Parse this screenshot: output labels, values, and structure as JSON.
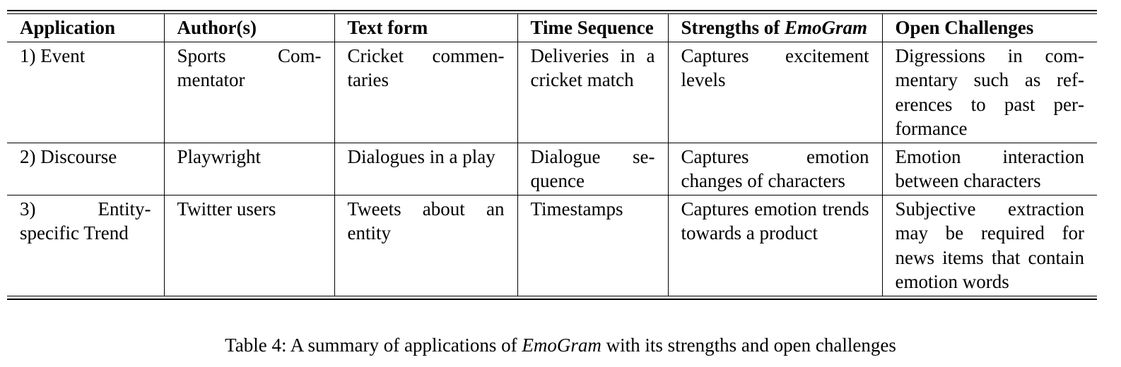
{
  "table": {
    "headers": [
      {
        "html": "Application"
      },
      {
        "html": "Author(s)"
      },
      {
        "html": "Text form"
      },
      {
        "html": "Time Se&shy;quence"
      },
      {
        "html": "Strengths of <em>EmoGram</em>"
      },
      {
        "html": "Open Challenges"
      }
    ],
    "rows": [
      [
        "1) Event",
        "Sports Com&shy;mentator",
        "Cricket commen&shy;taries",
        "Deliveries in a cricket match",
        "Captures excitement levels",
        "Digressions in com&shy;mentary such as ref&shy;erences to past per&shy;formance"
      ],
      [
        "2) Discourse",
        "Playwright",
        "Dialogues in a play",
        "Dialogue se&shy;quence",
        "Captures emotion changes of characters",
        "Emotion interaction between characters"
      ],
      [
        "3) Entity-specific Trend",
        "Twitter users",
        "Tweets about an entity",
        "Timestamps",
        "Captures emotion trends towards a product",
        "Subjective extraction may be required for news items that con&shy;tain emotion words"
      ]
    ]
  },
  "caption": {
    "prefix": "Table 4: A summary of applications of ",
    "emph": "EmoGram",
    "suffix": " with its strengths and open challenges"
  }
}
